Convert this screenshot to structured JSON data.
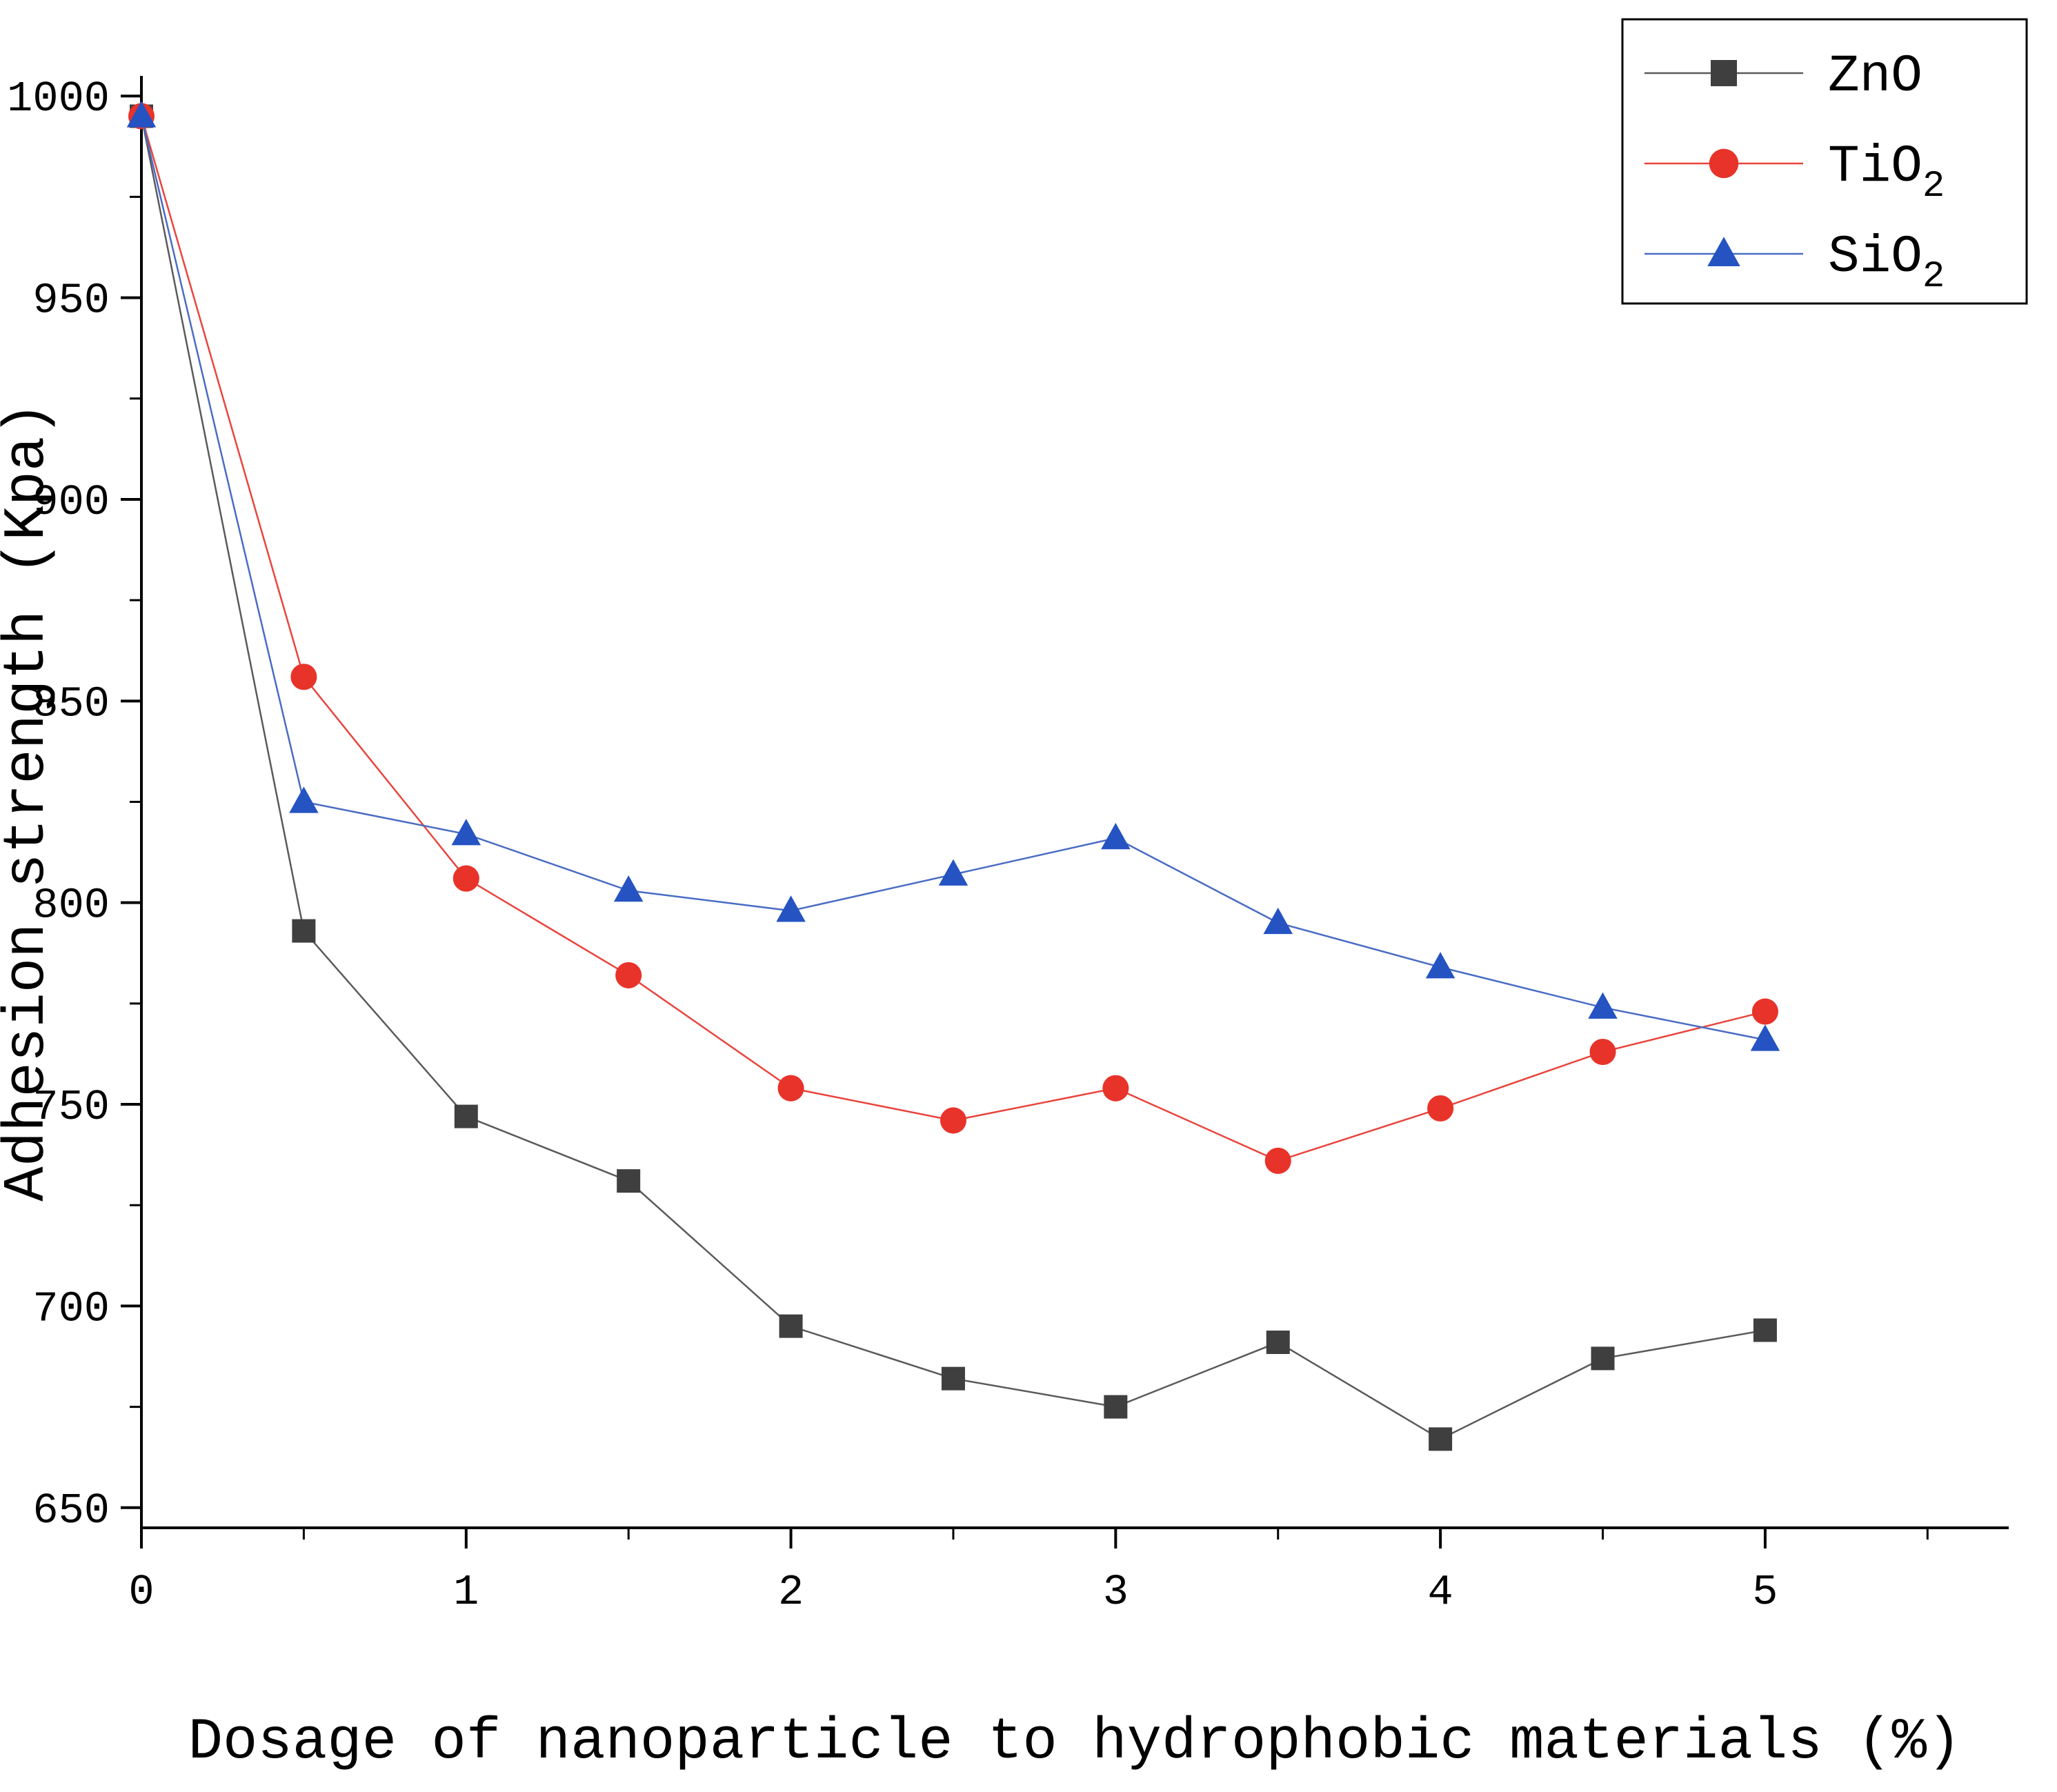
{
  "chart_data": {
    "type": "line",
    "title": "",
    "xlabel": "Dosage of nanoparticle to hydrophobic materials (%)",
    "ylabel": "Adhesion strength (Kpa)",
    "x": [
      0,
      0.5,
      1,
      1.5,
      2,
      2.5,
      3,
      3.5,
      4,
      4.5,
      5
    ],
    "series": [
      {
        "name": "ZnO",
        "label_main": "ZnO",
        "label_sub": "",
        "marker": "square",
        "marker_color": "#3f3f3f",
        "line_color": "#5a5a5a",
        "values": [
          995,
          793,
          747,
          731,
          695,
          682,
          675,
          691,
          667,
          687,
          694
        ]
      },
      {
        "name": "TiO2",
        "label_main": "TiO",
        "label_sub": "2",
        "marker": "circle",
        "marker_color": "#e8332a",
        "line_color": "#e8453d",
        "values": [
          995,
          856,
          806,
          782,
          754,
          746,
          754,
          736,
          749,
          763,
          773
        ]
      },
      {
        "name": "SiO2",
        "label_main": "SiO",
        "label_sub": "2",
        "marker": "triangle",
        "marker_color": "#2553c2",
        "line_color": "#4a6cc4",
        "values": [
          995,
          825,
          817,
          803,
          798,
          807,
          816,
          795,
          784,
          774,
          766
        ]
      }
    ],
    "xlim": [
      0,
      5.75
    ],
    "ylim": [
      645,
      1005
    ],
    "xticks": [
      0,
      1,
      2,
      3,
      4,
      5
    ],
    "yticks": [
      650,
      700,
      750,
      800,
      850,
      900,
      950,
      1000
    ],
    "x_minor_step": 0.5,
    "y_minor_step": 25,
    "grid": "off",
    "legend_position": "top-right",
    "axis_color": "#000000"
  }
}
